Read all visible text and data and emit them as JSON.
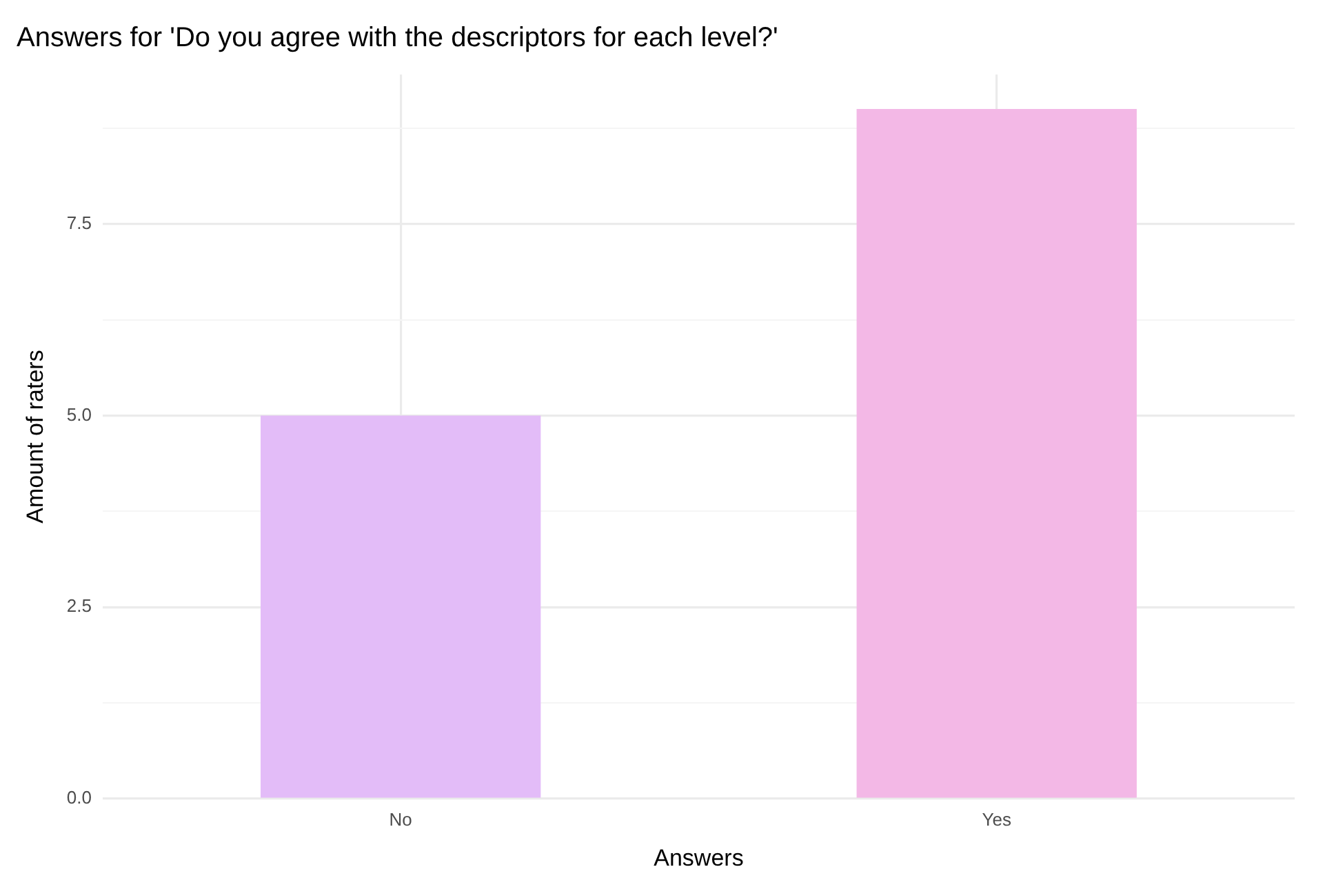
{
  "chart_data": {
    "type": "bar",
    "title": "Answers for 'Do you agree with the descriptors for each level?'",
    "xlabel": "Answers",
    "ylabel": "Amount of raters",
    "categories": [
      "No",
      "Yes"
    ],
    "values": [
      5,
      9
    ],
    "colors": [
      "#e3bcf8",
      "#f3b8e6"
    ],
    "ylim": [
      0,
      9.45
    ],
    "yticks": [
      {
        "value": 0,
        "label": "0.0"
      },
      {
        "value": 1.25,
        "label": null
      },
      2.5,
      {
        "value": 3.75,
        "label": null
      },
      {
        "value": 5,
        "label": "5.0"
      },
      {
        "value": 6.25,
        "label": null
      },
      7.5,
      {
        "value": 8.75,
        "label": null
      }
    ],
    "grid": true,
    "legend": false
  }
}
